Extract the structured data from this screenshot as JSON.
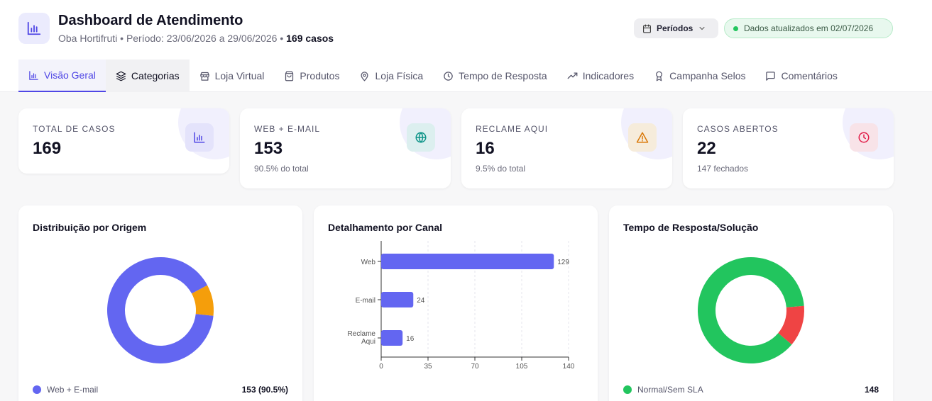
{
  "header": {
    "title": "Dashboard de Atendimento",
    "company": "Oba Hortifruti",
    "period_label": "Período: 23/06/2026 a 29/06/2026",
    "cases_label": "169 casos",
    "periodos_button": "Períodos",
    "status_text": "Dados atualizados em 02/07/2026"
  },
  "tabs": [
    {
      "label": "Visão Geral",
      "icon": "bar-chart-icon"
    },
    {
      "label": "Categorias",
      "icon": "layers-icon"
    },
    {
      "label": "Loja Virtual",
      "icon": "store-icon"
    },
    {
      "label": "Produtos",
      "icon": "bag-icon"
    },
    {
      "label": "Loja Física",
      "icon": "map-pin-icon"
    },
    {
      "label": "Tempo de Resposta",
      "icon": "clock-icon"
    },
    {
      "label": "Indicadores",
      "icon": "trending-up-icon"
    },
    {
      "label": "Campanha Selos",
      "icon": "award-icon"
    },
    {
      "label": "Comentários",
      "icon": "message-icon"
    }
  ],
  "kpis": [
    {
      "label": "TOTAL DE CASOS",
      "value": "169",
      "sub": "",
      "icon": "bar-chart-icon",
      "color": "#4f46e5",
      "bg": "#e4e3fb"
    },
    {
      "label": "WEB + E-MAIL",
      "value": "153",
      "sub": "90.5% do total",
      "icon": "globe-icon",
      "color": "#0d9488",
      "bg": "#dcefef"
    },
    {
      "label": "RECLAME AQUI",
      "value": "16",
      "sub": "9.5% do total",
      "icon": "alert-triangle-icon",
      "color": "#d97706",
      "bg": "#f6ecdb"
    },
    {
      "label": "CASOS ABERTOS",
      "value": "22",
      "sub": "147 fechados",
      "icon": "clock-icon",
      "color": "#e11d48",
      "bg": "#f8e3e8"
    }
  ],
  "cards": {
    "origem": {
      "title": "Distribuição por Origem",
      "legend": [
        {
          "label": "Web + E-mail",
          "value": "153 (90.5%)",
          "color": "#6366f1"
        }
      ]
    },
    "canal": {
      "title": "Detalhamento por Canal"
    },
    "tempo": {
      "title": "Tempo de Resposta/Solução",
      "legend": [
        {
          "label": "Normal/Sem SLA",
          "value": "148",
          "color": "#22c55e"
        }
      ]
    }
  },
  "chart_data": [
    {
      "type": "pie",
      "categories": [
        "Web + E-mail",
        "Reclame Aqui"
      ],
      "values": [
        153,
        16
      ],
      "colors": [
        "#6366f1",
        "#f59e0b"
      ],
      "donut": true
    },
    {
      "type": "bar",
      "orientation": "horizontal",
      "categories": [
        "Web",
        "E-mail",
        "Reclame Aqui"
      ],
      "values": [
        129,
        24,
        16
      ],
      "xlim": [
        0,
        140
      ],
      "xticks": [
        0,
        35,
        70,
        105,
        140
      ],
      "grid": true,
      "color": "#6366f1"
    },
    {
      "type": "pie",
      "categories": [
        "Normal/Sem SLA",
        ""
      ],
      "values": [
        148,
        21
      ],
      "colors": [
        "#22c55e",
        "#ef4444"
      ],
      "donut": true
    }
  ]
}
